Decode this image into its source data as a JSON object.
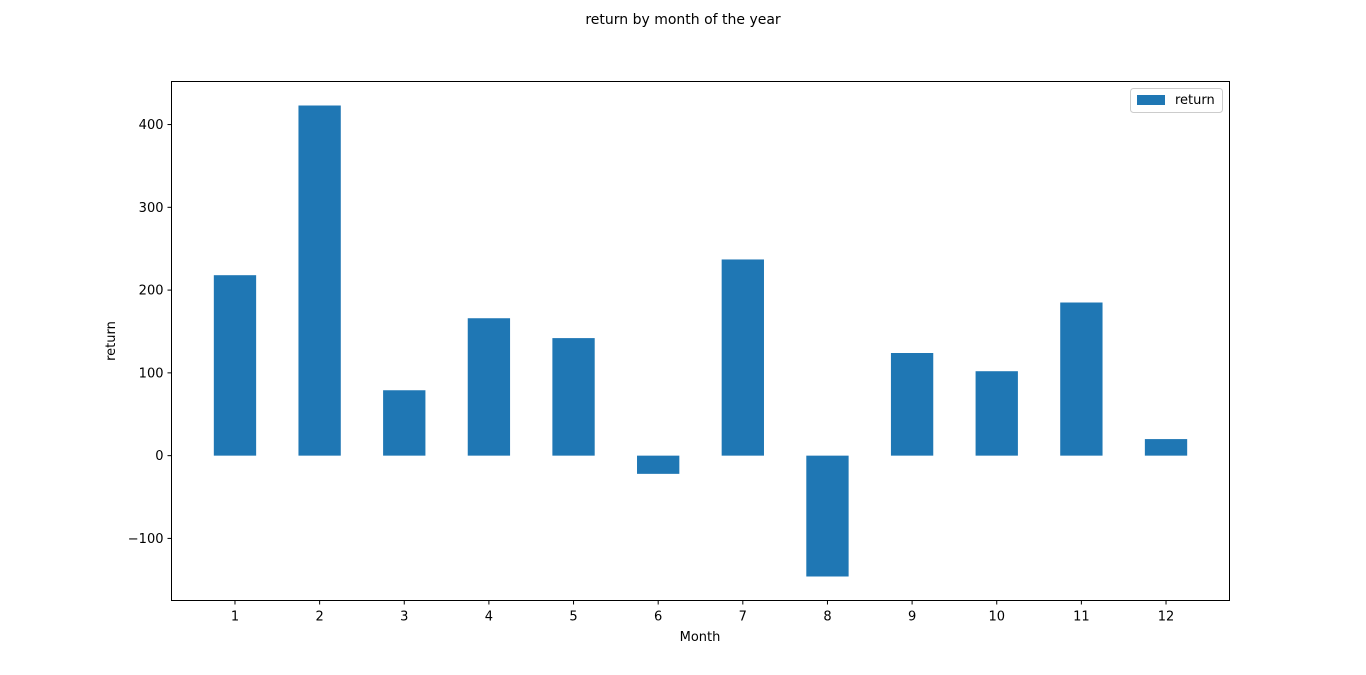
{
  "chart_data": {
    "type": "bar",
    "title": "return by month of the year",
    "xlabel": "Month",
    "ylabel": "return",
    "categories": [
      "1",
      "2",
      "3",
      "4",
      "5",
      "6",
      "7",
      "8",
      "9",
      "10",
      "11",
      "12"
    ],
    "series": [
      {
        "name": "return",
        "color": "#1f77b4",
        "values": [
          218,
          423,
          79,
          166,
          142,
          -22,
          237,
          -146,
          124,
          102,
          185,
          20
        ]
      }
    ],
    "ylim": [
      -175,
      452
    ],
    "yticks": [
      -100,
      0,
      100,
      200,
      300,
      400
    ],
    "ytick_labels": [
      "−100",
      "0",
      "100",
      "200",
      "300",
      "400"
    ],
    "legend": "top-right",
    "grid": false
  }
}
